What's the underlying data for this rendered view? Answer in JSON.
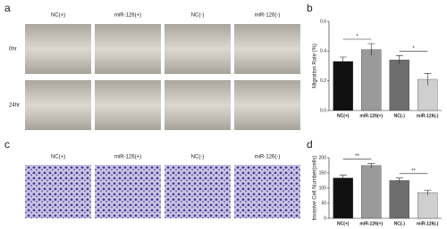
{
  "panels": {
    "a": "a",
    "c": "c",
    "b": "b",
    "d": "d"
  },
  "columns": [
    "NC(+)",
    "miR-126(+)",
    "NC(-)",
    "miR-126(-)"
  ],
  "rows": [
    "0hr",
    "24hr"
  ],
  "chart_data": [
    {
      "type": "bar",
      "y_label": "Migration Rate (%)",
      "categories": [
        "NC(+)",
        "miR-126(+)",
        "NC(-)",
        "miR-126(-)"
      ],
      "values": [
        0.33,
        0.41,
        0.34,
        0.21
      ],
      "errors": [
        0.03,
        0.04,
        0.03,
        0.04
      ],
      "colors": [
        "#111111",
        "#9a9a9a",
        "#6e6e6e",
        "#cfcfcf"
      ],
      "ylim": [
        0,
        0.6
      ],
      "yticks": [
        {
          "value": 0,
          "label": "0.0"
        },
        {
          "value": 0.2,
          "label": "0.2"
        },
        {
          "value": 0.4,
          "label": "0.4"
        },
        {
          "value": 0.6,
          "label": "0.6"
        }
      ],
      "annotations": [
        "*",
        "*"
      ]
    },
    {
      "type": "bar",
      "y_label": "Invasive Cell Number(cells)",
      "categories": [
        "NC(+)",
        "miR-126(+)",
        "NC(-)",
        "miR-126(-)"
      ],
      "values": [
        133,
        174,
        125,
        85
      ],
      "errors": [
        9,
        7,
        8,
        8
      ],
      "colors": [
        "#111111",
        "#9a9a9a",
        "#6e6e6e",
        "#cfcfcf"
      ],
      "ylim": [
        0,
        200
      ],
      "yticks": [
        0,
        50,
        100,
        150,
        200
      ],
      "annotations": [
        "**",
        "**"
      ]
    }
  ]
}
